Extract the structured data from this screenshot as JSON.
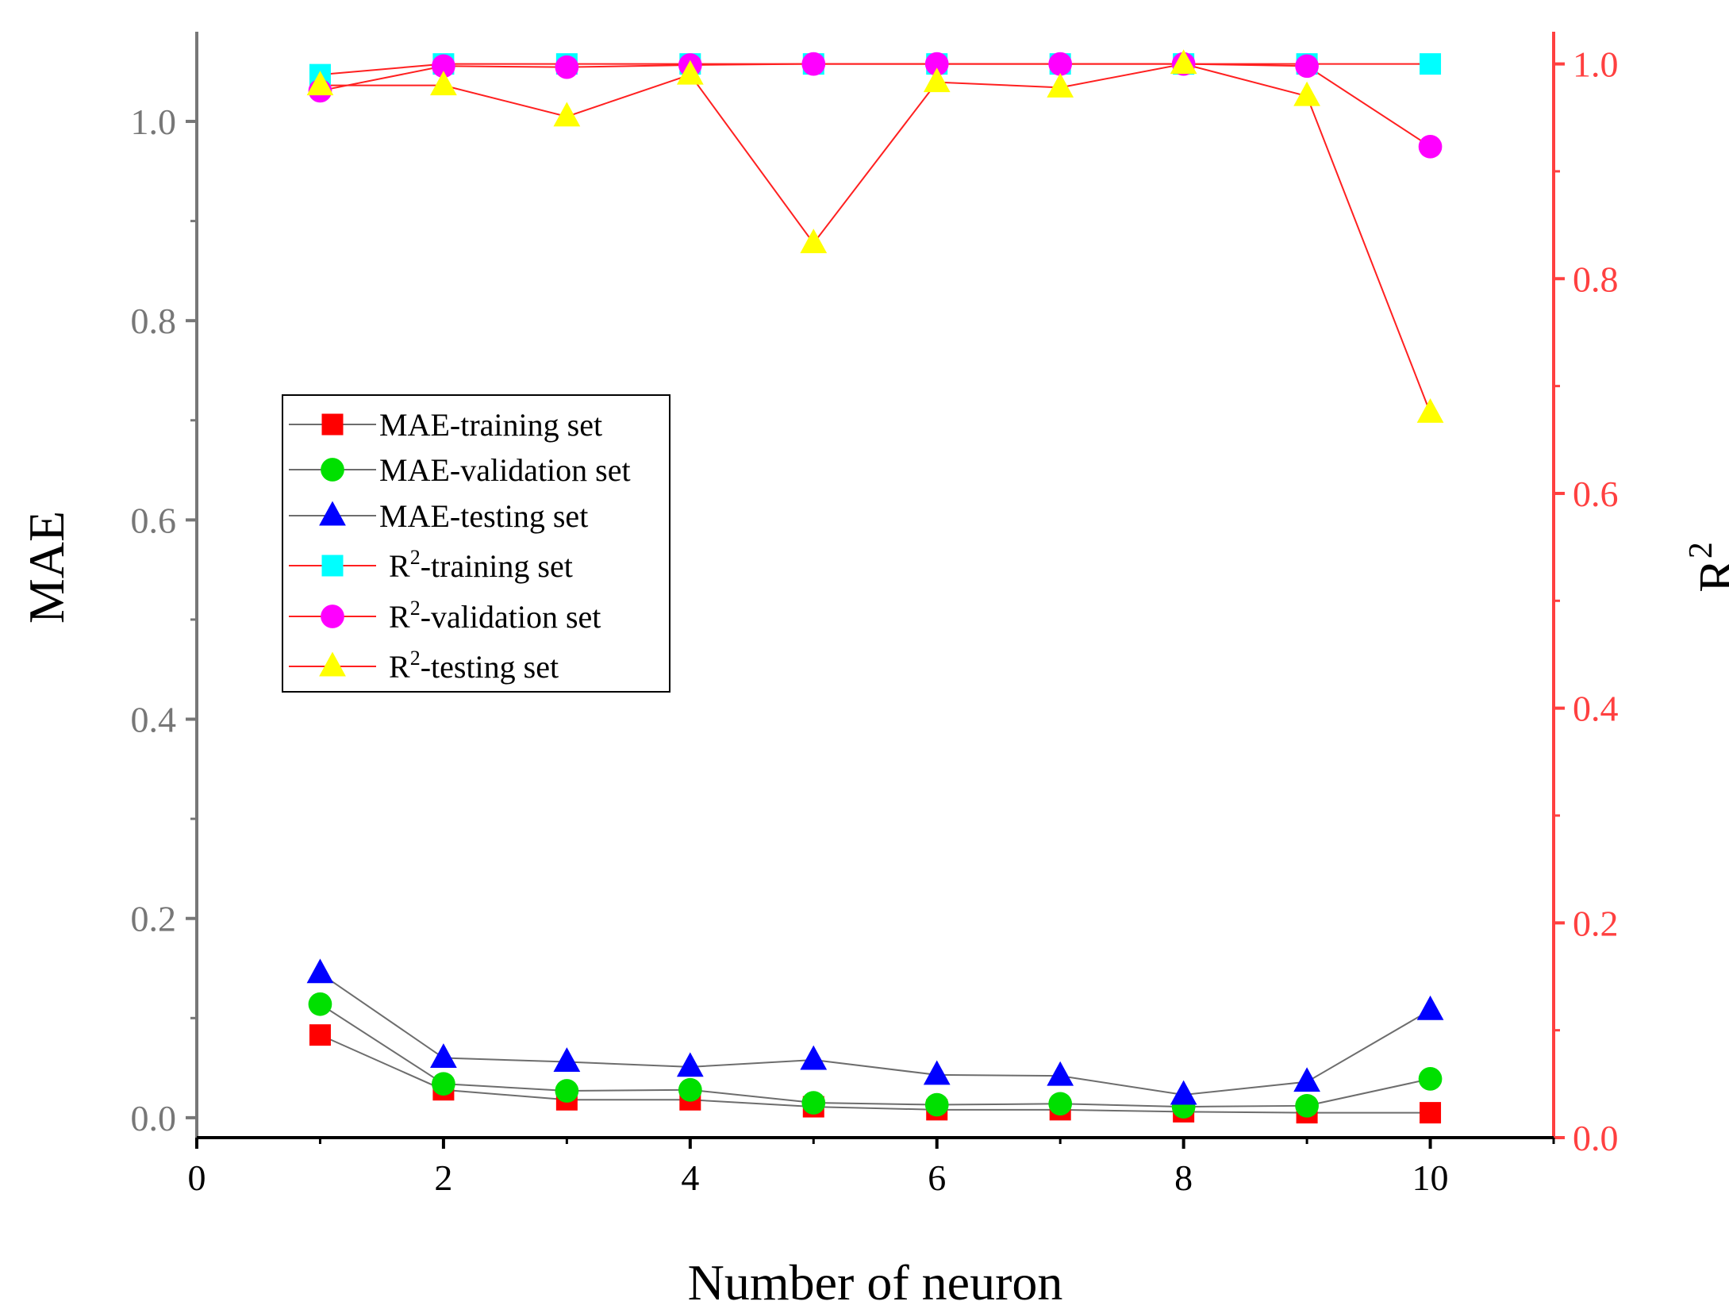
{
  "chart_data": {
    "type": "line",
    "x": [
      1,
      2,
      3,
      4,
      5,
      6,
      7,
      8,
      9,
      10
    ],
    "xlabel": "Number of neuron",
    "xlim": [
      0,
      11
    ],
    "xticks": [
      "0",
      "2",
      "4",
      "6",
      "8",
      "10"
    ],
    "ylabel_left": "MAE",
    "ylim_left": [
      -0.02,
      1.09
    ],
    "yticks_left": [
      "0.0",
      "0.2",
      "0.4",
      "0.6",
      "0.8",
      "1.0"
    ],
    "ylabel_right": "R",
    "ylabel_right_sup": "2",
    "ylim_right": [
      0,
      1.03
    ],
    "yticks_right": [
      "0.0",
      "0.2",
      "0.4",
      "0.6",
      "0.8",
      "1.0"
    ],
    "grid": false,
    "legend_position": "middle-left",
    "colors": {
      "mae_line": "#6d6d6d",
      "r2_line": "#ff2020",
      "left_axis": "#777777",
      "right_axis": "#ff4040"
    },
    "series": [
      {
        "key": "mae_train",
        "axis": "left",
        "name": "MAE-training set",
        "name_sup": "",
        "marker": "square",
        "color": "#ff0000",
        "line": "#6d6d6d",
        "values": [
          0.083,
          0.028,
          0.018,
          0.018,
          0.011,
          0.008,
          0.008,
          0.006,
          0.005,
          0.005
        ]
      },
      {
        "key": "mae_val",
        "axis": "left",
        "name": "MAE-validation set",
        "name_sup": "",
        "marker": "circle",
        "color": "#00e000",
        "line": "#6d6d6d",
        "values": [
          0.114,
          0.034,
          0.027,
          0.028,
          0.015,
          0.013,
          0.014,
          0.011,
          0.012,
          0.039
        ]
      },
      {
        "key": "mae_test",
        "axis": "left",
        "name": "MAE-testing set",
        "name_sup": "",
        "marker": "triangle",
        "color": "#0000ff",
        "line": "#6d6d6d",
        "values": [
          0.145,
          0.06,
          0.056,
          0.051,
          0.058,
          0.043,
          0.042,
          0.023,
          0.036,
          0.108
        ]
      },
      {
        "key": "r2_train",
        "axis": "right",
        "name": "-training set",
        "name_sup": "2",
        "marker": "square",
        "color": "#00ffff",
        "line": "#ff2020",
        "values": [
          0.99,
          1.0,
          1.0,
          1.0,
          1.0,
          1.0,
          1.0,
          1.0,
          1.0,
          1.0
        ]
      },
      {
        "key": "r2_val",
        "axis": "right",
        "name": "-validation set",
        "name_sup": "2",
        "marker": "circle",
        "color": "#ff00ff",
        "line": "#ff2020",
        "values": [
          0.975,
          0.998,
          0.997,
          0.999,
          1.0,
          1.0,
          1.0,
          1.0,
          0.998,
          0.923
        ]
      },
      {
        "key": "r2_test",
        "axis": "right",
        "name": "-testing set",
        "name_sup": "2",
        "marker": "triangle",
        "color": "#ffff00",
        "line": "#ff2020",
        "values": [
          0.98,
          0.98,
          0.951,
          0.99,
          0.833,
          0.983,
          0.978,
          1.0,
          0.97,
          0.675
        ]
      }
    ]
  }
}
